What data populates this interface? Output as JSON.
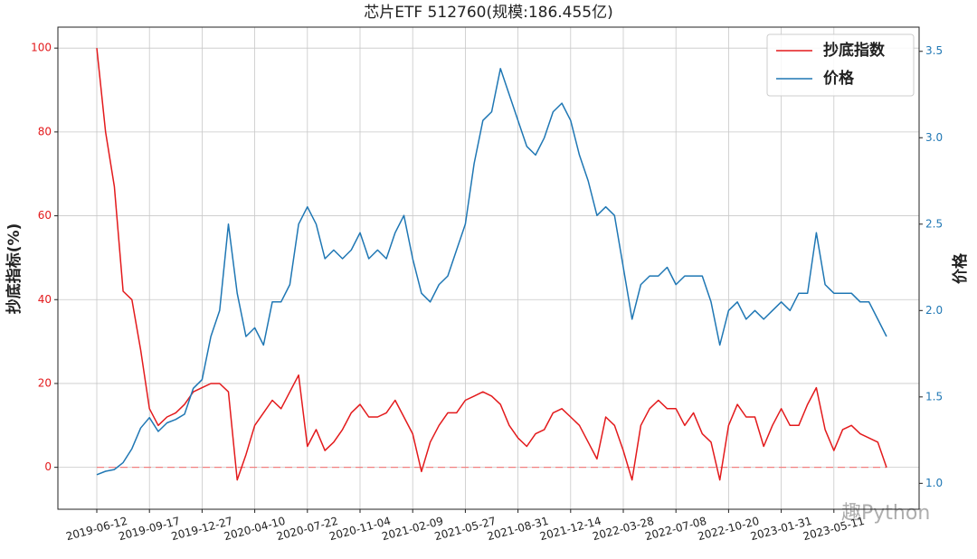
{
  "chart_data": {
    "type": "line",
    "title": "芯片ETF  512760(规模:186.455亿)",
    "y_label": "抄底指标(%)",
    "y2_label": "价格",
    "watermark": "趣Python",
    "categories": [
      "2019-06-12",
      null,
      null,
      null,
      null,
      null,
      "2019-09-17",
      null,
      null,
      null,
      null,
      null,
      "2019-12-27",
      null,
      null,
      null,
      null,
      null,
      "2020-04-10",
      null,
      null,
      null,
      null,
      null,
      "2020-07-22",
      null,
      null,
      null,
      null,
      null,
      "2020-11-04",
      null,
      null,
      null,
      null,
      null,
      "2021-02-09",
      null,
      null,
      null,
      null,
      null,
      "2021-05-27",
      null,
      null,
      null,
      null,
      null,
      "2021-08-31",
      null,
      null,
      null,
      null,
      null,
      "2021-12-14",
      null,
      null,
      null,
      null,
      null,
      "2022-03-28",
      null,
      null,
      null,
      null,
      null,
      "2022-07-08",
      null,
      null,
      null,
      null,
      null,
      "2022-10-20",
      null,
      null,
      null,
      null,
      null,
      "2023-01-31",
      null,
      null,
      null,
      null,
      null,
      "2023-05-11",
      null,
      null,
      null,
      null,
      null,
      null
    ],
    "series": [
      {
        "name": "抄底指数",
        "color": "#e31a1c",
        "axis": "y",
        "values": [
          100,
          80,
          67,
          42,
          40,
          28,
          14,
          10,
          12,
          13,
          15,
          18,
          19,
          20,
          20,
          18,
          -3,
          3,
          10,
          13,
          16,
          14,
          18,
          22,
          5,
          9,
          4,
          6,
          9,
          13,
          15,
          12,
          12,
          13,
          16,
          12,
          8,
          -1,
          6,
          10,
          13,
          13,
          16,
          17,
          18,
          17,
          15,
          10,
          7,
          5,
          8,
          9,
          13,
          14,
          12,
          10,
          6,
          2,
          12,
          10,
          4,
          -3,
          10,
          14,
          16,
          14,
          14,
          10,
          13,
          8,
          6,
          -3,
          10,
          15,
          12,
          12,
          5,
          10,
          14,
          10,
          10,
          15,
          19,
          9,
          4,
          9,
          10,
          8,
          7,
          6,
          0
        ]
      },
      {
        "name": "价格",
        "color": "#1f77b4",
        "axis": "y2",
        "values": [
          1.05,
          1.07,
          1.08,
          1.12,
          1.2,
          1.32,
          1.38,
          1.3,
          1.35,
          1.37,
          1.4,
          1.55,
          1.6,
          1.85,
          2.0,
          2.5,
          2.1,
          1.85,
          1.9,
          1.8,
          2.05,
          2.05,
          2.15,
          2.5,
          2.6,
          2.5,
          2.3,
          2.35,
          2.3,
          2.35,
          2.45,
          2.3,
          2.35,
          2.3,
          2.45,
          2.55,
          2.3,
          2.1,
          2.05,
          2.15,
          2.2,
          2.35,
          2.5,
          2.85,
          3.1,
          3.15,
          3.4,
          3.25,
          3.1,
          2.95,
          2.9,
          3.0,
          3.15,
          3.2,
          3.1,
          2.9,
          2.75,
          2.55,
          2.6,
          2.55,
          2.25,
          1.95,
          2.15,
          2.2,
          2.2,
          2.25,
          2.15,
          2.2,
          2.2,
          2.2,
          2.05,
          1.8,
          2.0,
          2.05,
          1.95,
          2.0,
          1.95,
          2.0,
          2.05,
          2.0,
          2.1,
          2.1,
          2.45,
          2.15,
          2.1,
          2.1,
          2.1,
          2.05,
          2.05,
          1.95,
          1.85
        ]
      }
    ],
    "hline": {
      "value": 0,
      "color": "#f08080"
    },
    "ylim": [
      -10,
      105
    ],
    "yticks": [
      0,
      20,
      40,
      60,
      80,
      100
    ],
    "y2lim": [
      0.85,
      3.64
    ],
    "y2ticks": [
      {
        "value": 1.0,
        "label": "1.0"
      },
      {
        "value": 1.5,
        "label": "1.5"
      },
      {
        "value": 2.0,
        "label": "2.0"
      },
      {
        "value": 2.5,
        "label": "2.5"
      },
      {
        "value": 3.0,
        "label": "3.0"
      },
      {
        "value": 3.5,
        "label": "3.5"
      }
    ],
    "grid": true,
    "legend": "upper right"
  }
}
